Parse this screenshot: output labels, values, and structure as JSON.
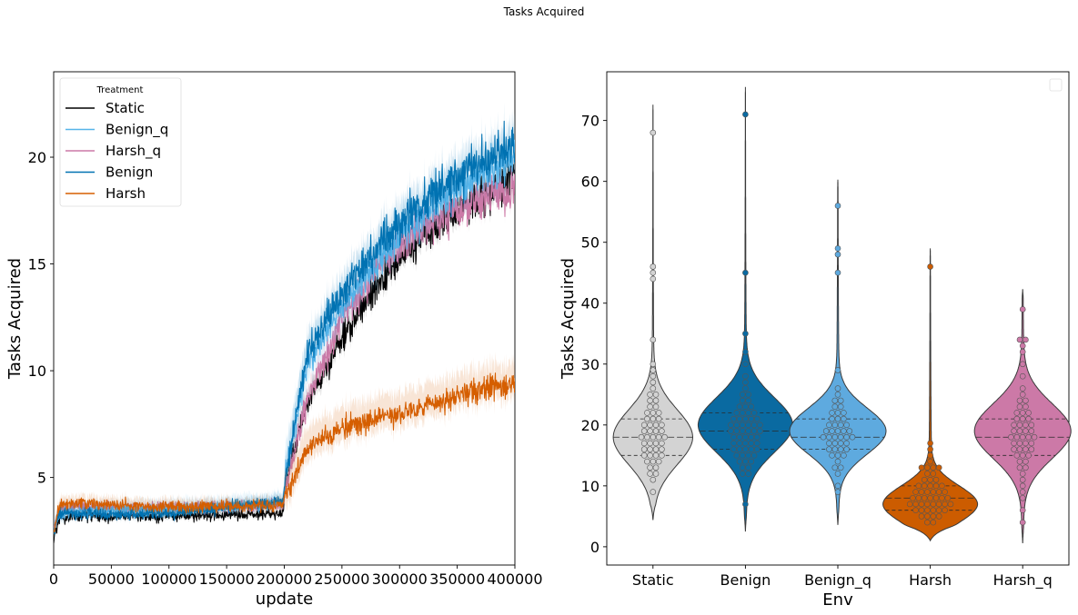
{
  "figure": {
    "suptitle": "Tasks Acquired"
  },
  "chart_data": [
    {
      "type": "line",
      "xlabel": "update",
      "ylabel": "Tasks Acquired",
      "xlim": [
        0,
        400000
      ],
      "ylim": [
        0.9,
        24
      ],
      "xticks": [
        0,
        50000,
        100000,
        150000,
        200000,
        250000,
        300000,
        350000,
        400000
      ],
      "yticks": [
        5,
        10,
        15,
        20
      ],
      "grid": false,
      "legend": {
        "title": "Treatment",
        "placement": "upper-left"
      },
      "x": [
        0,
        5000,
        20000,
        100000,
        199000,
        201000,
        220000,
        250000,
        275000,
        300000,
        325000,
        350000,
        375000,
        400000
      ],
      "series": [
        {
          "name": "Static",
          "color": "#000000",
          "values": [
            2.1,
            3.1,
            3.2,
            3.2,
            3.3,
            4.8,
            8.5,
            11.5,
            13.6,
            15.3,
            16.5,
            17.4,
            18.3,
            19.2
          ],
          "band": 0.6
        },
        {
          "name": "Benign_q",
          "color": "#56b4e9",
          "values": [
            2.6,
            3.3,
            3.4,
            3.5,
            3.8,
            5.2,
            10.3,
            13.0,
            14.8,
            16.3,
            17.5,
            18.6,
            19.3,
            20.1
          ],
          "band": 1.3
        },
        {
          "name": "Harsh_q",
          "color": "#cc79a7",
          "values": [
            2.6,
            3.5,
            3.6,
            3.6,
            3.7,
            4.4,
            8.7,
            12.5,
            14.4,
            15.9,
            16.9,
            17.6,
            18.1,
            18.5
          ],
          "band": 0.6
        },
        {
          "name": "Benign",
          "color": "#0072b2",
          "values": [
            2.5,
            3.3,
            3.3,
            3.3,
            3.9,
            5.0,
            10.8,
            13.6,
            15.4,
            16.9,
            18.1,
            19.0,
            19.8,
            20.6
          ],
          "band": 0.9
        },
        {
          "name": "Harsh",
          "color": "#d55e00",
          "values": [
            2.4,
            3.7,
            3.8,
            3.6,
            3.7,
            4.2,
            6.3,
            7.3,
            7.6,
            8.0,
            8.4,
            8.8,
            9.2,
            9.3
          ],
          "band": 1.0
        }
      ]
    },
    {
      "type": "violin",
      "xlabel": "Env",
      "ylabel": "Tasks Acquired",
      "ylim": [
        -3,
        78
      ],
      "yticks": [
        0,
        10,
        20,
        30,
        40,
        50,
        60,
        70
      ],
      "categories": [
        "Static",
        "Benign",
        "Benign_q",
        "Harsh",
        "Harsh_q"
      ],
      "inner": "quartile",
      "grid": false,
      "series": [
        {
          "name": "Static",
          "color": "#d3d3d3",
          "min": 4.4,
          "max": 72.6,
          "q1": 15,
          "median": 18,
          "q3": 21,
          "mode": 18,
          "width": 42
        },
        {
          "name": "Benign",
          "color": "#0a6aa1",
          "min": 2.5,
          "max": 75.5,
          "q1": 16,
          "median": 19,
          "q3": 22,
          "mode": 20,
          "width": 50
        },
        {
          "name": "Benign_q",
          "color": "#5eaadf",
          "min": 3.6,
          "max": 60.3,
          "q1": 16,
          "median": 18,
          "q3": 21,
          "mode": 19,
          "width": 51
        },
        {
          "name": "Harsh",
          "color": "#cc5c00",
          "min": 1.0,
          "max": 49.0,
          "q1": 6,
          "median": 8,
          "q3": 10,
          "mode": 7,
          "width": 50
        },
        {
          "name": "Harsh_q",
          "color": "#cc79a7",
          "min": 0.6,
          "max": 42.3,
          "q1": 15,
          "median": 18,
          "q3": 21,
          "mode": 19,
          "width": 51
        }
      ],
      "points": {
        "Static": [
          9,
          11,
          12,
          12,
          13,
          13,
          14,
          14,
          14,
          15,
          15,
          15,
          15,
          16,
          16,
          16,
          16,
          17,
          17,
          17,
          17,
          18,
          18,
          18,
          18,
          18,
          19,
          19,
          19,
          19,
          20,
          20,
          20,
          20,
          21,
          21,
          21,
          22,
          22,
          22,
          23,
          23,
          24,
          24,
          25,
          25,
          26,
          27,
          28,
          29,
          30,
          34,
          44,
          45,
          46,
          68
        ],
        "Benign": [
          7,
          12,
          12,
          13,
          13,
          14,
          14,
          14,
          15,
          15,
          15,
          15,
          16,
          16,
          16,
          16,
          16,
          17,
          17,
          17,
          17,
          17,
          18,
          18,
          18,
          18,
          18,
          19,
          19,
          19,
          19,
          19,
          19,
          20,
          20,
          20,
          20,
          20,
          20,
          21,
          21,
          21,
          21,
          21,
          22,
          22,
          22,
          22,
          23,
          23,
          23,
          24,
          24,
          25,
          25,
          26,
          27,
          28,
          30,
          32,
          35,
          45,
          71
        ],
        "Benign_q": [
          9,
          10,
          12,
          13,
          13,
          14,
          15,
          15,
          15,
          16,
          16,
          16,
          16,
          17,
          17,
          17,
          17,
          18,
          18,
          18,
          18,
          18,
          18,
          19,
          19,
          19,
          19,
          19,
          20,
          20,
          20,
          20,
          21,
          21,
          21,
          22,
          22,
          22,
          23,
          23,
          24,
          24,
          25,
          26,
          29,
          45,
          48,
          49,
          56
        ],
        "Harsh": [
          4,
          4,
          5,
          5,
          5,
          5,
          6,
          6,
          6,
          6,
          6,
          6,
          7,
          7,
          7,
          7,
          7,
          7,
          7,
          7,
          8,
          8,
          8,
          8,
          8,
          8,
          8,
          9,
          9,
          9,
          9,
          9,
          9,
          10,
          10,
          10,
          10,
          10,
          11,
          11,
          11,
          12,
          12,
          13,
          13,
          13,
          13,
          14,
          15,
          16,
          17,
          46
        ],
        "Harsh_q": [
          4,
          6,
          8,
          9,
          10,
          11,
          12,
          13,
          13,
          14,
          14,
          15,
          15,
          15,
          16,
          16,
          16,
          16,
          17,
          17,
          17,
          17,
          18,
          18,
          18,
          18,
          18,
          19,
          19,
          19,
          19,
          20,
          20,
          20,
          20,
          21,
          21,
          21,
          22,
          22,
          22,
          23,
          23,
          24,
          24,
          25,
          26,
          28,
          30,
          32,
          33,
          34,
          34,
          39
        ]
      }
    }
  ]
}
